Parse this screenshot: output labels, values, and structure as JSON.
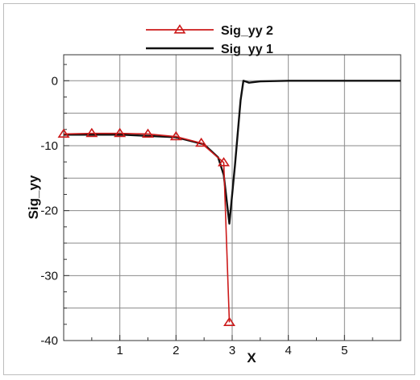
{
  "chart_data": {
    "type": "line",
    "xlabel": "X",
    "ylabel": "Sig_yy",
    "xlim": [
      0,
      6
    ],
    "ylim": [
      -40,
      4
    ],
    "x_ticks": [
      1,
      2,
      3,
      4,
      5
    ],
    "y_ticks": [
      0,
      -10,
      -20,
      -30,
      -40
    ],
    "grid": true,
    "legend_position": "top-center",
    "series": [
      {
        "name": "Sig_yy 2",
        "color": "#cc1a1a",
        "marker": "triangle",
        "x": [
          0.0,
          0.5,
          1.0,
          1.5,
          2.0,
          2.45,
          2.85,
          2.95
        ],
        "y": [
          -8.2,
          -8.1,
          -8.1,
          -8.2,
          -8.6,
          -9.6,
          -12.6,
          -37.2
        ]
      },
      {
        "name": "Sig_yy 1",
        "color": "#111111",
        "marker": "none",
        "x": [
          0.0,
          1.0,
          2.0,
          2.5,
          2.75,
          2.85,
          2.95,
          3.05,
          3.15,
          3.2,
          3.3,
          3.5,
          4.0,
          5.0,
          6.0
        ],
        "y": [
          -8.3,
          -8.3,
          -8.7,
          -9.8,
          -11.8,
          -14.5,
          -22.0,
          -13.0,
          -3.0,
          0.0,
          -0.3,
          -0.1,
          0.0,
          0.0,
          0.0
        ]
      }
    ]
  }
}
